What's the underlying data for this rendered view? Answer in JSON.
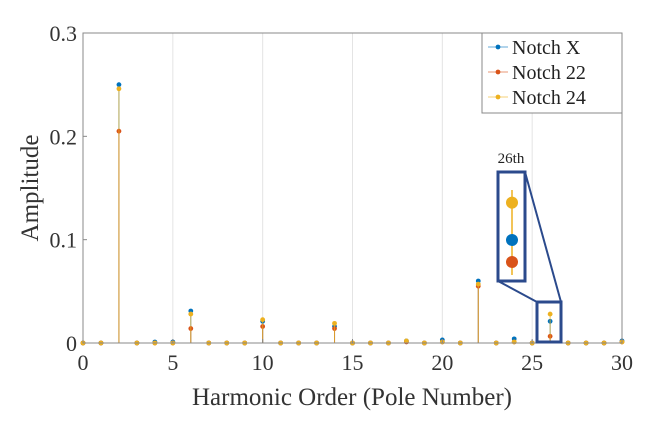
{
  "chart_data": {
    "type": "stem",
    "title": "",
    "xlabel": "Harmonic Order (Pole Number)",
    "ylabel": "Amplitude",
    "xlim": [
      0,
      30
    ],
    "ylim": [
      0,
      0.3
    ],
    "xticks": [
      "0",
      "5",
      "10",
      "15",
      "20",
      "25",
      "30"
    ],
    "yticks": [
      "0",
      "0.1",
      "0.2",
      "0.3"
    ],
    "legend_position": "top-right",
    "x": [
      0,
      1,
      2,
      3,
      4,
      5,
      6,
      7,
      8,
      9,
      10,
      11,
      12,
      13,
      14,
      15,
      16,
      17,
      18,
      19,
      20,
      21,
      22,
      23,
      24,
      25,
      26,
      27,
      28,
      29,
      30
    ],
    "series": [
      {
        "name": "Notch X",
        "color": "#0072BD",
        "values": [
          0,
          0,
          0.25,
          0,
          0.001,
          0.001,
          0.031,
          0,
          0,
          0,
          0.021,
          0,
          0,
          0,
          0.016,
          0,
          0,
          0,
          0.002,
          0,
          0.003,
          0,
          0.06,
          0,
          0.004,
          0,
          0.021,
          0,
          0,
          0,
          0.002
        ]
      },
      {
        "name": "Notch 22",
        "color": "#D95319",
        "values": [
          0,
          0,
          0.205,
          0,
          0,
          0,
          0.014,
          0,
          0,
          0,
          0.016,
          0,
          0,
          0,
          0.014,
          0,
          0,
          0,
          0.001,
          0,
          0.001,
          0,
          0.055,
          0,
          0.001,
          0,
          0.0065,
          0,
          0,
          0,
          0.001
        ]
      },
      {
        "name": "Notch 24",
        "color": "#EDB120",
        "values": [
          0,
          0,
          0.246,
          0,
          0,
          0,
          0.028,
          0,
          0,
          0,
          0.0226,
          0,
          0,
          0,
          0.019,
          0,
          0,
          0,
          0.002,
          0,
          0.001,
          0,
          0.057,
          0,
          0.001,
          0,
          0.028,
          0,
          0,
          0,
          0.001
        ]
      }
    ],
    "annotation": {
      "label": "26th",
      "harmonic": 26,
      "box_color": "#2B4A8C"
    }
  }
}
